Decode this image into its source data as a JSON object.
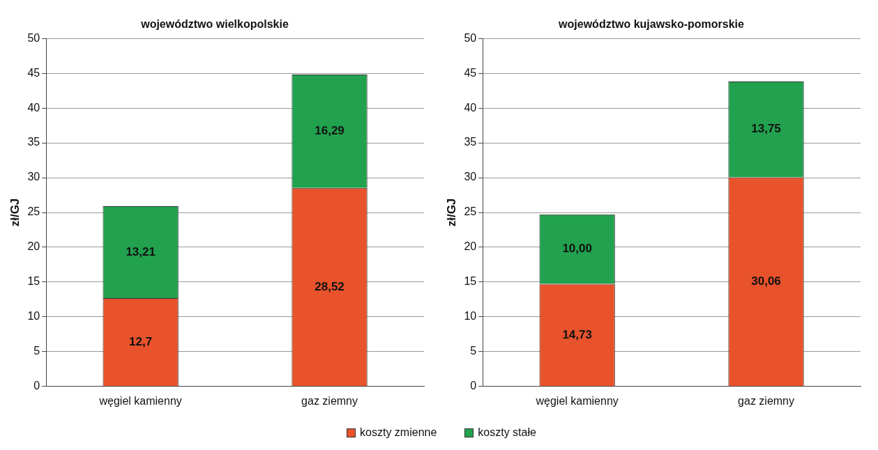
{
  "chart_data": [
    {
      "type": "bar",
      "title": "województwo wielkopolskie",
      "ylabel": "zł/GJ",
      "categories": [
        "węgiel kamienny",
        "gaz ziemny"
      ],
      "stacked": true,
      "ylim": [
        0,
        50
      ],
      "yticks": [
        0,
        5,
        10,
        15,
        20,
        25,
        30,
        35,
        40,
        45,
        50
      ],
      "grid": "y",
      "legend": "bottom",
      "series": [
        {
          "name": "koszty zmienne",
          "color": "#e8532c",
          "values": [
            12.7,
            28.52
          ],
          "value_labels": [
            "12,7",
            "28,52"
          ]
        },
        {
          "name": "koszty stałe",
          "color": "#22a24e",
          "values": [
            13.21,
            16.29
          ],
          "value_labels": [
            "13,21",
            "16,29"
          ]
        }
      ]
    },
    {
      "type": "bar",
      "title": "województwo kujawsko-pomorskie",
      "ylabel": "zł/GJ",
      "categories": [
        "węgiel kamienny",
        "gaz ziemny"
      ],
      "stacked": true,
      "ylim": [
        0,
        50
      ],
      "yticks": [
        0,
        5,
        10,
        15,
        20,
        25,
        30,
        35,
        40,
        45,
        50
      ],
      "grid": "y",
      "series": [
        {
          "color": "#e8532c",
          "values": [
            14.73,
            30.06
          ],
          "value_labels": [
            "14,73",
            "30,06"
          ]
        },
        {
          "color": "#22a24e",
          "values": [
            10.0,
            13.75
          ],
          "value_labels": [
            "10,00",
            "13,75"
          ]
        }
      ]
    }
  ]
}
